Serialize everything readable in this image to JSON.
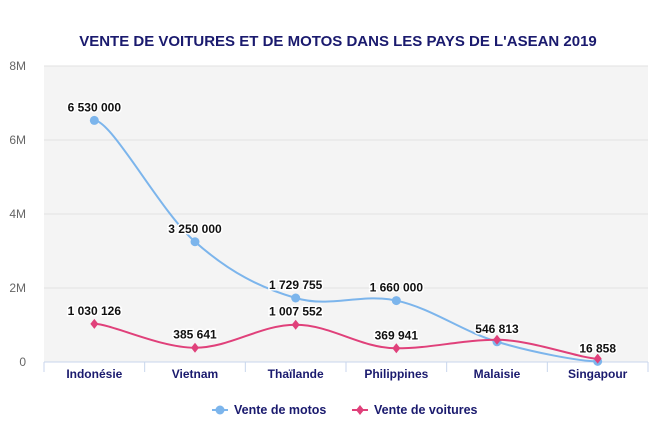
{
  "chart_data": {
    "type": "line",
    "title": "VENTE DE VOITURES ET DE MOTOS DANS LES PAYS DE L'ASEAN 2019",
    "categories": [
      "Indonésie",
      "Vietnam",
      "Thaïlande",
      "Philippines",
      "Malaisie",
      "Singapour"
    ],
    "ylim": [
      0,
      8000000
    ],
    "yticks": [
      0,
      2000000,
      4000000,
      6000000,
      8000000
    ],
    "ytick_labels": [
      "0",
      "2M",
      "4M",
      "6M",
      "8M"
    ],
    "grid": true,
    "legend_position": "bottom",
    "series": [
      {
        "name": "Vente de motos",
        "color": "#7cb5ec",
        "marker": "circle",
        "values": [
          6530000,
          3250000,
          1729755,
          1660000,
          546813,
          16858
        ],
        "labels": [
          "6 530 000",
          "3 250 000",
          "1 729 755",
          "1 660 000",
          "546 813",
          "16 858"
        ]
      },
      {
        "name": "Vente de voitures",
        "color": "#e0407a",
        "marker": "diamond",
        "values": [
          1030126,
          385641,
          1007552,
          369941,
          600000,
          90000
        ],
        "labels": [
          "1 030 126",
          "385 641",
          "1 007 552",
          "369 941",
          null,
          null
        ]
      }
    ]
  }
}
